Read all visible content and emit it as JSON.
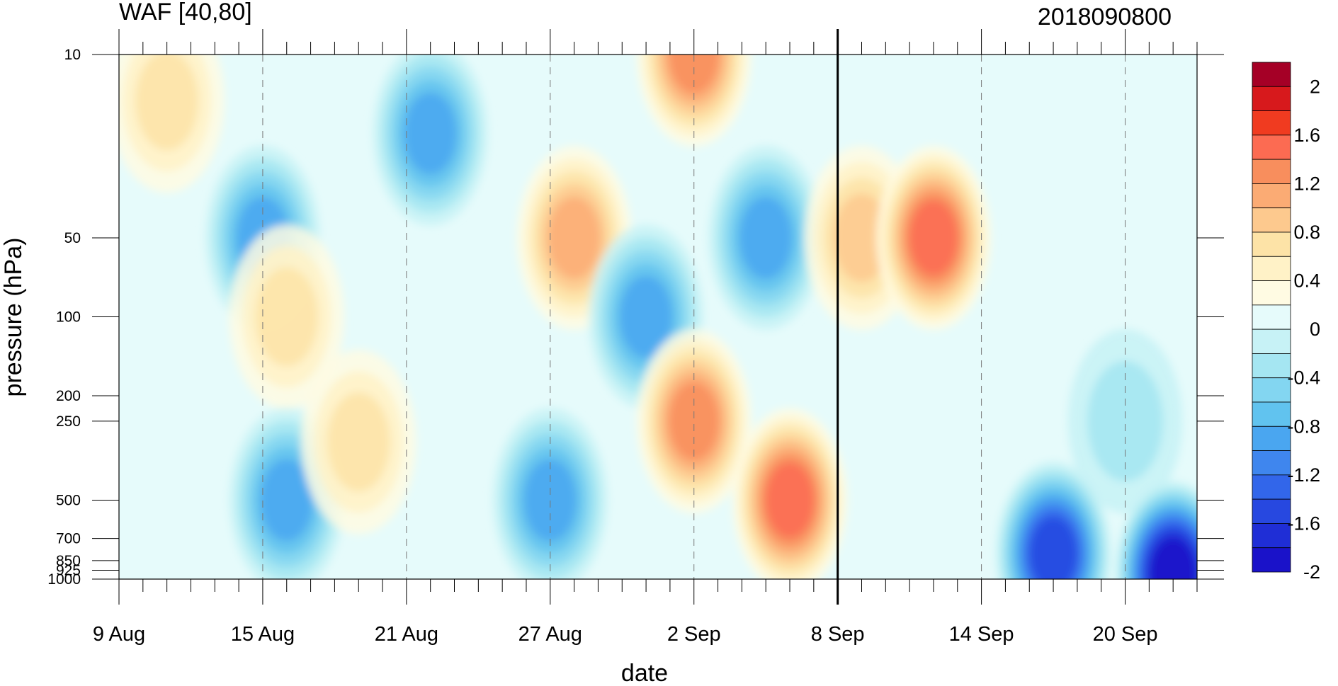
{
  "chart_data": {
    "type": "heatmap",
    "title_left": "WAF [40,80]",
    "title_right": "2018090800",
    "xlabel": "date",
    "ylabel": "pressure (hPa)",
    "x_tick_labels": [
      "9 Aug",
      "15 Aug",
      "21 Aug",
      "27 Aug",
      "2 Sep",
      "8 Sep",
      "14 Sep",
      "20 Sep"
    ],
    "x_range": [
      "2018-08-09",
      "2018-09-23"
    ],
    "y_scale": "log",
    "y_reversed": true,
    "y_range": [
      1000,
      10
    ],
    "y_tick_values": [
      10,
      50,
      100,
      200,
      250,
      500,
      700,
      850,
      925,
      1000
    ],
    "y_tick_labels": [
      "10",
      "50",
      "100",
      "200",
      "250",
      "500",
      "700",
      "850",
      "925",
      "1000"
    ],
    "analysis_time_marker": "2018-09-08",
    "colorbar": {
      "label_values": [
        "2",
        "1.6",
        "1.2",
        "0.8",
        "0.4",
        "0",
        "-0.4",
        "-0.8",
        "-1.2",
        "-1.6",
        "-2"
      ],
      "colors": [
        "#a50026",
        "#d7191c",
        "#f03b20",
        "#fc6b52",
        "#f88e5d",
        "#fbab74",
        "#fdc98e",
        "#fde3a7",
        "#fff2c7",
        "#fffbe3",
        "#e6fbfb",
        "#c7f2f6",
        "#a5e6f2",
        "#83d6f1",
        "#61c3ef",
        "#4aa6f0",
        "#3f86ee",
        "#3266ea",
        "#2748e0",
        "#1f2ed6",
        "#1a12c9"
      ]
    },
    "features": [
      {
        "date": "2018-08-11",
        "pressure": 15,
        "value": 0.6
      },
      {
        "date": "2018-08-15",
        "pressure": 50,
        "value": -1.0
      },
      {
        "date": "2018-08-16",
        "pressure": 100,
        "value": 0.6
      },
      {
        "date": "2018-08-16",
        "pressure": 500,
        "value": -1.0
      },
      {
        "date": "2018-08-19",
        "pressure": 300,
        "value": 0.5
      },
      {
        "date": "2018-08-22",
        "pressure": 20,
        "value": -1.0
      },
      {
        "date": "2018-08-28",
        "pressure": 50,
        "value": 1.0
      },
      {
        "date": "2018-08-27",
        "pressure": 500,
        "value": -1.0
      },
      {
        "date": "2018-08-31",
        "pressure": 100,
        "value": -1.0
      },
      {
        "date": "2018-09-02",
        "pressure": 10,
        "value": 1.2
      },
      {
        "date": "2018-09-02",
        "pressure": 250,
        "value": 1.2
      },
      {
        "date": "2018-09-05",
        "pressure": 50,
        "value": -1.0
      },
      {
        "date": "2018-09-06",
        "pressure": 500,
        "value": 1.4
      },
      {
        "date": "2018-09-09",
        "pressure": 50,
        "value": 0.8
      },
      {
        "date": "2018-09-12",
        "pressure": 50,
        "value": 1.4
      },
      {
        "date": "2018-09-20",
        "pressure": 250,
        "value": -0.4
      },
      {
        "date": "2018-09-17",
        "pressure": 800,
        "value": -1.6
      },
      {
        "date": "2018-09-22",
        "pressure": 950,
        "value": -2.0
      }
    ]
  }
}
